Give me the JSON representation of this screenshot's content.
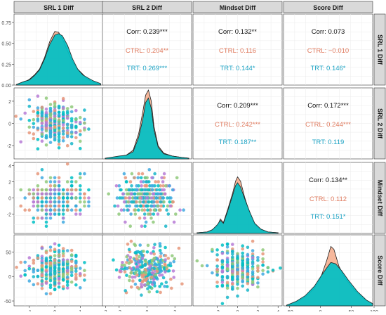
{
  "chart_data": {
    "type": "pairs",
    "variables": [
      "SRL 1 Diff",
      "SRL 2 Diff",
      "Mindset Diff",
      "Score Diff"
    ],
    "groups": [
      {
        "name": "CTRL",
        "color": "#F4A582"
      },
      {
        "name": "TRT",
        "color": "#00BFC4"
      }
    ],
    "correlation_color": "#111111",
    "axes": {
      "SRL 1 Diff": {
        "range": [
          -1.6,
          1.9
        ],
        "ticks": [
          -1,
          0,
          1,
          2
        ],
        "tick_labels": [
          "-1",
          "0",
          "1",
          "2"
        ],
        "as_y_range": [
          0,
          0.85
        ],
        "as_y_ticks": [
          0,
          0.25,
          0.5,
          0.75
        ],
        "as_y_tick_labels": [
          "0.00",
          "0.25",
          "0.50",
          "0.75"
        ]
      },
      "SRL 2 Diff": {
        "range": [
          -3.2,
          3.2
        ],
        "ticks": [
          -2,
          0,
          2
        ],
        "tick_labels": [
          "-2",
          "0",
          "2"
        ]
      },
      "Mindset Diff": {
        "range": [
          -4.4,
          4.4
        ],
        "ticks": [
          -2,
          0,
          2,
          4
        ],
        "tick_labels": [
          "-2",
          "0",
          "2",
          "4"
        ]
      },
      "Score Diff": {
        "range": [
          -60,
          85
        ],
        "ticks": [
          -50,
          0,
          50
        ],
        "tick_labels": [
          "-50",
          "0",
          "50"
        ],
        "as_y_tick_labels": [
          "-50",
          "0",
          "50"
        ],
        "as_x_tick_labels": [
          "-50",
          "0",
          "50",
          "100"
        ],
        "as_x_ticks": [
          -50,
          0,
          50,
          100
        ]
      }
    },
    "correlations": [
      {
        "row": "SRL 1 Diff",
        "col": "SRL 2 Diff",
        "corr": "Corr: 0.239***",
        "ctrl": "CTRL: 0.204**",
        "trt": "TRT: 0.269***"
      },
      {
        "row": "SRL 1 Diff",
        "col": "Mindset Diff",
        "corr": "Corr: 0.132**",
        "ctrl": "CTRL: 0.116",
        "trt": "TRT: 0.144*"
      },
      {
        "row": "SRL 1 Diff",
        "col": "Score Diff",
        "corr": "Corr: 0.073",
        "ctrl": "CTRL: −0.010",
        "trt": "TRT: 0.146*"
      },
      {
        "row": "SRL 2 Diff",
        "col": "Mindset Diff",
        "corr": "Corr: 0.209***",
        "ctrl": "CTRL: 0.242***",
        "trt": "TRT: 0.187**"
      },
      {
        "row": "SRL 2 Diff",
        "col": "Score Diff",
        "corr": "Corr: 0.172***",
        "ctrl": "CTRL: 0.244***",
        "trt": "TRT: 0.119"
      },
      {
        "row": "Mindset Diff",
        "col": "Score Diff",
        "corr": "Corr: 0.134**",
        "ctrl": "CTRL: 0.112",
        "trt": "TRT: 0.151*"
      }
    ],
    "densities": {
      "SRL 1 Diff": {
        "ctrl": [
          [
            -1.5,
            0.01
          ],
          [
            -1.2,
            0.04
          ],
          [
            -1.0,
            0.08
          ],
          [
            -0.8,
            0.14
          ],
          [
            -0.6,
            0.22
          ],
          [
            -0.4,
            0.38
          ],
          [
            -0.2,
            0.6
          ],
          [
            0.0,
            0.74
          ],
          [
            0.15,
            0.73
          ],
          [
            0.3,
            0.64
          ],
          [
            0.5,
            0.47
          ],
          [
            0.7,
            0.32
          ],
          [
            0.9,
            0.22
          ],
          [
            1.1,
            0.15
          ],
          [
            1.3,
            0.08
          ],
          [
            1.5,
            0.04
          ],
          [
            1.8,
            0.01
          ]
        ],
        "trt": [
          [
            -1.5,
            0.01
          ],
          [
            -1.2,
            0.05
          ],
          [
            -1.0,
            0.07
          ],
          [
            -0.8,
            0.13
          ],
          [
            -0.6,
            0.21
          ],
          [
            -0.4,
            0.36
          ],
          [
            -0.2,
            0.56
          ],
          [
            0.0,
            0.69
          ],
          [
            0.15,
            0.71
          ],
          [
            0.3,
            0.68
          ],
          [
            0.5,
            0.55
          ],
          [
            0.7,
            0.36
          ],
          [
            0.9,
            0.22
          ],
          [
            1.1,
            0.14
          ],
          [
            1.3,
            0.1
          ],
          [
            1.5,
            0.06
          ],
          [
            1.8,
            0.02
          ]
        ]
      },
      "SRL 2 Diff": {
        "ctrl": [
          [
            -3,
            0.01
          ],
          [
            -2,
            0.03
          ],
          [
            -1.5,
            0.05
          ],
          [
            -1,
            0.12
          ],
          [
            -0.6,
            0.35
          ],
          [
            -0.3,
            0.65
          ],
          [
            -0.1,
            0.88
          ],
          [
            0.1,
            0.95
          ],
          [
            0.3,
            0.8
          ],
          [
            0.5,
            0.45
          ],
          [
            0.8,
            0.18
          ],
          [
            1.2,
            0.08
          ],
          [
            1.8,
            0.04
          ],
          [
            2.5,
            0.02
          ],
          [
            3,
            0.01
          ]
        ],
        "trt": [
          [
            -3,
            0.01
          ],
          [
            -2,
            0.04
          ],
          [
            -1.5,
            0.05
          ],
          [
            -1,
            0.1
          ],
          [
            -0.6,
            0.3
          ],
          [
            -0.3,
            0.55
          ],
          [
            -0.1,
            0.78
          ],
          [
            0.1,
            0.84
          ],
          [
            0.3,
            0.7
          ],
          [
            0.5,
            0.4
          ],
          [
            0.8,
            0.16
          ],
          [
            1.2,
            0.07
          ],
          [
            1.8,
            0.04
          ],
          [
            2.5,
            0.02
          ],
          [
            3,
            0.01
          ]
        ]
      },
      "Mindset Diff": {
        "ctrl": [
          [
            -4,
            0.01
          ],
          [
            -3,
            0.02
          ],
          [
            -2.5,
            0.05
          ],
          [
            -2,
            0.1
          ],
          [
            -1.7,
            0.2
          ],
          [
            -1.4,
            0.15
          ],
          [
            -1,
            0.32
          ],
          [
            -0.5,
            0.55
          ],
          [
            -0.2,
            0.72
          ],
          [
            0,
            0.78
          ],
          [
            0.3,
            0.72
          ],
          [
            0.7,
            0.5
          ],
          [
            1.2,
            0.28
          ],
          [
            1.7,
            0.12
          ],
          [
            2.3,
            0.05
          ],
          [
            3,
            0.02
          ],
          [
            4,
            0.01
          ]
        ],
        "trt": [
          [
            -4,
            0.01
          ],
          [
            -3,
            0.02
          ],
          [
            -2.5,
            0.05
          ],
          [
            -2,
            0.12
          ],
          [
            -1.7,
            0.18
          ],
          [
            -1.4,
            0.14
          ],
          [
            -1,
            0.3
          ],
          [
            -0.5,
            0.52
          ],
          [
            -0.2,
            0.66
          ],
          [
            0,
            0.7
          ],
          [
            0.3,
            0.64
          ],
          [
            0.7,
            0.48
          ],
          [
            1.2,
            0.3
          ],
          [
            1.7,
            0.14
          ],
          [
            2.3,
            0.06
          ],
          [
            3,
            0.02
          ],
          [
            4,
            0.01
          ]
        ]
      },
      "Score Diff": {
        "ctrl": [
          [
            -55,
            0.01
          ],
          [
            -40,
            0.05
          ],
          [
            -25,
            0.12
          ],
          [
            -10,
            0.24
          ],
          [
            0,
            0.38
          ],
          [
            10,
            0.62
          ],
          [
            17,
            0.82
          ],
          [
            22,
            0.78
          ],
          [
            30,
            0.55
          ],
          [
            40,
            0.38
          ],
          [
            55,
            0.22
          ],
          [
            70,
            0.1
          ],
          [
            85,
            0.03
          ]
        ],
        "trt": [
          [
            -55,
            0.01
          ],
          [
            -40,
            0.06
          ],
          [
            -25,
            0.14
          ],
          [
            -10,
            0.27
          ],
          [
            0,
            0.4
          ],
          [
            10,
            0.52
          ],
          [
            17,
            0.6
          ],
          [
            25,
            0.58
          ],
          [
            35,
            0.48
          ],
          [
            45,
            0.36
          ],
          [
            60,
            0.2
          ],
          [
            75,
            0.08
          ],
          [
            85,
            0.03
          ]
        ]
      }
    },
    "scatter_colors": [
      "#00BFC4",
      "#3FA9E0",
      "#E6967A",
      "#B77BD6",
      "#8FC97A",
      "#19B6C9"
    ],
    "points_per_panel": 300
  }
}
